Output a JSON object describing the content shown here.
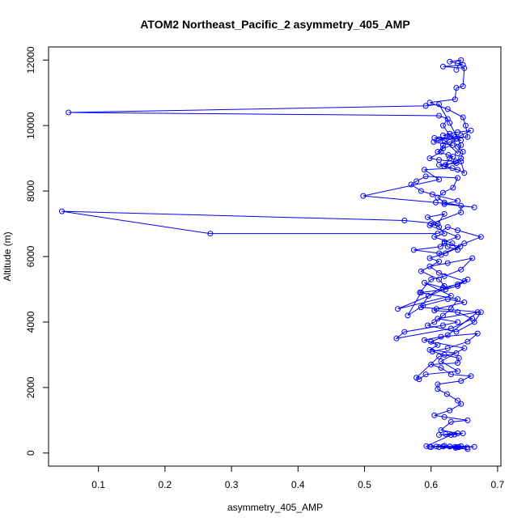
{
  "chart_data": {
    "type": "scatter",
    "title": "ATOM2 Northeast_Pacific_2 asymmetry_405_AMP",
    "xlabel": "asymmetry_405_AMP",
    "ylabel": "Altitude (m)",
    "xlim": [
      0.025,
      0.705
    ],
    "ylim": [
      -400,
      12400
    ],
    "x_ticks": [
      0.1,
      0.2,
      0.3,
      0.4,
      0.5,
      0.6,
      0.7
    ],
    "x_tick_labels": [
      "0.1",
      "0.2",
      "0.3",
      "0.4",
      "0.5",
      "0.6",
      "0.7"
    ],
    "y_ticks": [
      0,
      2000,
      4000,
      6000,
      8000,
      10000,
      12000
    ],
    "y_tick_labels": [
      "0",
      "2000",
      "4000",
      "6000",
      "8000",
      "10000",
      "12000"
    ],
    "grid": false,
    "connected": true,
    "marker": "open-circle",
    "color": "#0000ff",
    "series": [
      {
        "x": [
          0.655,
          0.612,
          0.628,
          0.636,
          0.642,
          0.62,
          0.598,
          0.608,
          0.654,
          0.637,
          0.628,
          0.645,
          0.665,
          0.64,
          0.618,
          0.6,
          0.593,
          0.63,
          0.648,
          0.612,
          0.635,
          0.622,
          0.64,
          0.615,
          0.63,
          0.655,
          0.62,
          0.605,
          0.628,
          0.645,
          0.64,
          0.624,
          0.61,
          0.61,
          0.645,
          0.66,
          0.63,
          0.615,
          0.6,
          0.64,
          0.642,
          0.62,
          0.602,
          0.625,
          0.655,
          0.67,
          0.615,
          0.59,
          0.61,
          0.598,
          0.638,
          0.612,
          0.578,
          0.582,
          0.592,
          0.64,
          0.615,
          0.65,
          0.6,
          0.625,
          0.67,
          0.61,
          0.64,
          0.618,
          0.56,
          0.548,
          0.63,
          0.662,
          0.64,
          0.605,
          0.608,
          0.65,
          0.625,
          0.588,
          0.565,
          0.585,
          0.622,
          0.64,
          0.655,
          0.55,
          0.63,
          0.59,
          0.618,
          0.64,
          0.65,
          0.612,
          0.598,
          0.625,
          0.662,
          0.645,
          0.62,
          0.6,
          0.583,
          0.64,
          0.63,
          0.618,
          0.605,
          0.595,
          0.638,
          0.665,
          0.675,
          0.585,
          0.596,
          0.62,
          0.612,
          0.585,
          0.612,
          0.598,
          0.622,
          0.644,
          0.62,
          0.614,
          0.574,
          0.612,
          0.615,
          0.65,
          0.675,
          0.64,
          0.625,
          0.61,
          0.268,
          0.045,
          0.56,
          0.61,
          0.595,
          0.62,
          0.61,
          0.598,
          0.64,
          0.62,
          0.625,
          0.64,
          0.632,
          0.605,
          0.62,
          0.612,
          0.6,
          0.645,
          0.645,
          0.62,
          0.61,
          0.618,
          0.633,
          0.64,
          0.592,
          0.578,
          0.57,
          0.585,
          0.602,
          0.64,
          0.62,
          0.665,
          0.607,
          0.498,
          0.612,
          0.59,
          0.632,
          0.612,
          0.638,
          0.637,
          0.612,
          0.598,
          0.615,
          0.618,
          0.628,
          0.645,
          0.638,
          0.636,
          0.618,
          0.628,
          0.64,
          0.66,
          0.645,
          0.638,
          0.612,
          0.628,
          0.604,
          0.632,
          0.618,
          0.61,
          0.626,
          0.633,
          0.628,
          0.622,
          0.645,
          0.65,
          0.64,
          0.62,
          0.645,
          0.648,
          0.64,
          0.618,
          0.625,
          0.612,
          0.055,
          0.592,
          0.612,
          0.628,
          0.645,
          0.64,
          0.62,
          0.605,
          0.655,
          0.652,
          0.648,
          0.625,
          0.598,
          0.636,
          0.638,
          0.648,
          0.65,
          0.618,
          0.648,
          0.64,
          0.628,
          0.645,
          0.638
        ],
        "y": [
          120,
          180,
          200,
          190,
          180,
          220,
          190,
          200,
          170,
          160,
          200,
          210,
          190,
          180,
          200,
          180,
          210,
          550,
          600,
          550,
          560,
          580,
          600,
          700,
          950,
          1000,
          1100,
          1150,
          1300,
          1500,
          1600,
          1800,
          1950,
          2100,
          2200,
          2350,
          2400,
          2600,
          2700,
          2750,
          2900,
          3000,
          3100,
          3200,
          3400,
          3650,
          3550,
          3450,
          3300,
          3150,
          3050,
          2950,
          2300,
          2250,
          2400,
          2500,
          2800,
          3200,
          3400,
          3600,
          4300,
          4100,
          4000,
          3900,
          3700,
          3500,
          3800,
          4100,
          4300,
          4350,
          4400,
          4600,
          4700,
          4500,
          4200,
          4900,
          5000,
          5100,
          5300,
          4400,
          4800,
          5200,
          5050,
          5150,
          5250,
          5500,
          5700,
          5800,
          5950,
          5600,
          5400,
          5300,
          4900,
          4700,
          4400,
          4200,
          4000,
          3900,
          3700,
          4000,
          4300,
          4450,
          4800,
          5100,
          5300,
          5550,
          5850,
          5950,
          6100,
          6300,
          6400,
          6300,
          6200,
          6100,
          6050,
          6400,
          6600,
          6800,
          6900,
          6700,
          6700,
          7380,
          7100,
          7000,
          7200,
          7300,
          7000,
          6950,
          6600,
          6450,
          6300,
          6200,
          6400,
          6600,
          6700,
          6900,
          7000,
          7350,
          7550,
          7650,
          7800,
          7950,
          8100,
          8400,
          8450,
          8300,
          8200,
          8000,
          7900,
          7700,
          7600,
          7500,
          7650,
          7850,
          8350,
          8650,
          8700,
          8800,
          8850,
          8900,
          8950,
          9000,
          9200,
          9400,
          9500,
          9550,
          9600,
          9650,
          9700,
          9750,
          9800,
          9850,
          9700,
          9600,
          9580,
          9650,
          9500,
          9400,
          9300,
          9200,
          9100,
          9050,
          9000,
          8800,
          8900,
          8550,
          8650,
          8750,
          9000,
          9200,
          9350,
          10000,
          10200,
          10300,
          10400,
          10600,
          10650,
          10080,
          9400,
          9150,
          9550,
          9620,
          9650,
          10000,
          10250,
          10500,
          10700,
          10800,
          11150,
          11200,
          11750,
          11800,
          11850,
          11900,
          11950,
          12000,
          11700
        ]
      }
    ]
  }
}
